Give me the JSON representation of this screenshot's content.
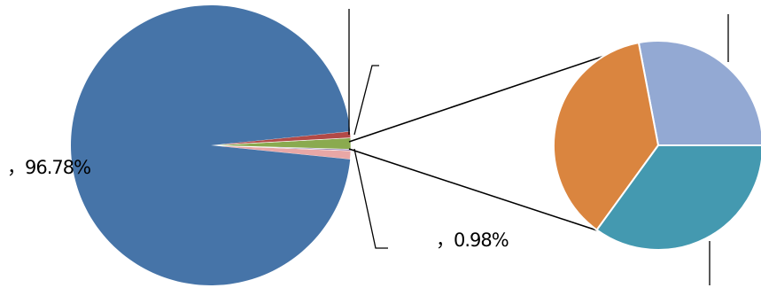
{
  "chart_data": {
    "type": "pie",
    "variant": "pie-of-pie",
    "title": "",
    "slices": [
      {
        "label_text": "，96.78%",
        "value": 96.78,
        "color": "#4674A8"
      },
      {
        "label_text": "",
        "value": 0.75,
        "color": "#B24A47"
      },
      {
        "label_text": "",
        "value": 1.3,
        "color": "#8AAA4F"
      },
      {
        "label_text": "",
        "value": 0.17,
        "color": "#7F64A2"
      },
      {
        "label_text": "，0.98%",
        "value": 0.98,
        "color": "#E8A7A6"
      }
    ],
    "secondary_pie": {
      "slices": [
        {
          "label_text": "",
          "value": 28,
          "color": "#93A9D3"
        },
        {
          "label_text": "",
          "value": 35,
          "color": "#4499B0"
        },
        {
          "label_text": "",
          "value": 37,
          "color": "#DA853F"
        }
      ]
    },
    "legend": "none"
  }
}
